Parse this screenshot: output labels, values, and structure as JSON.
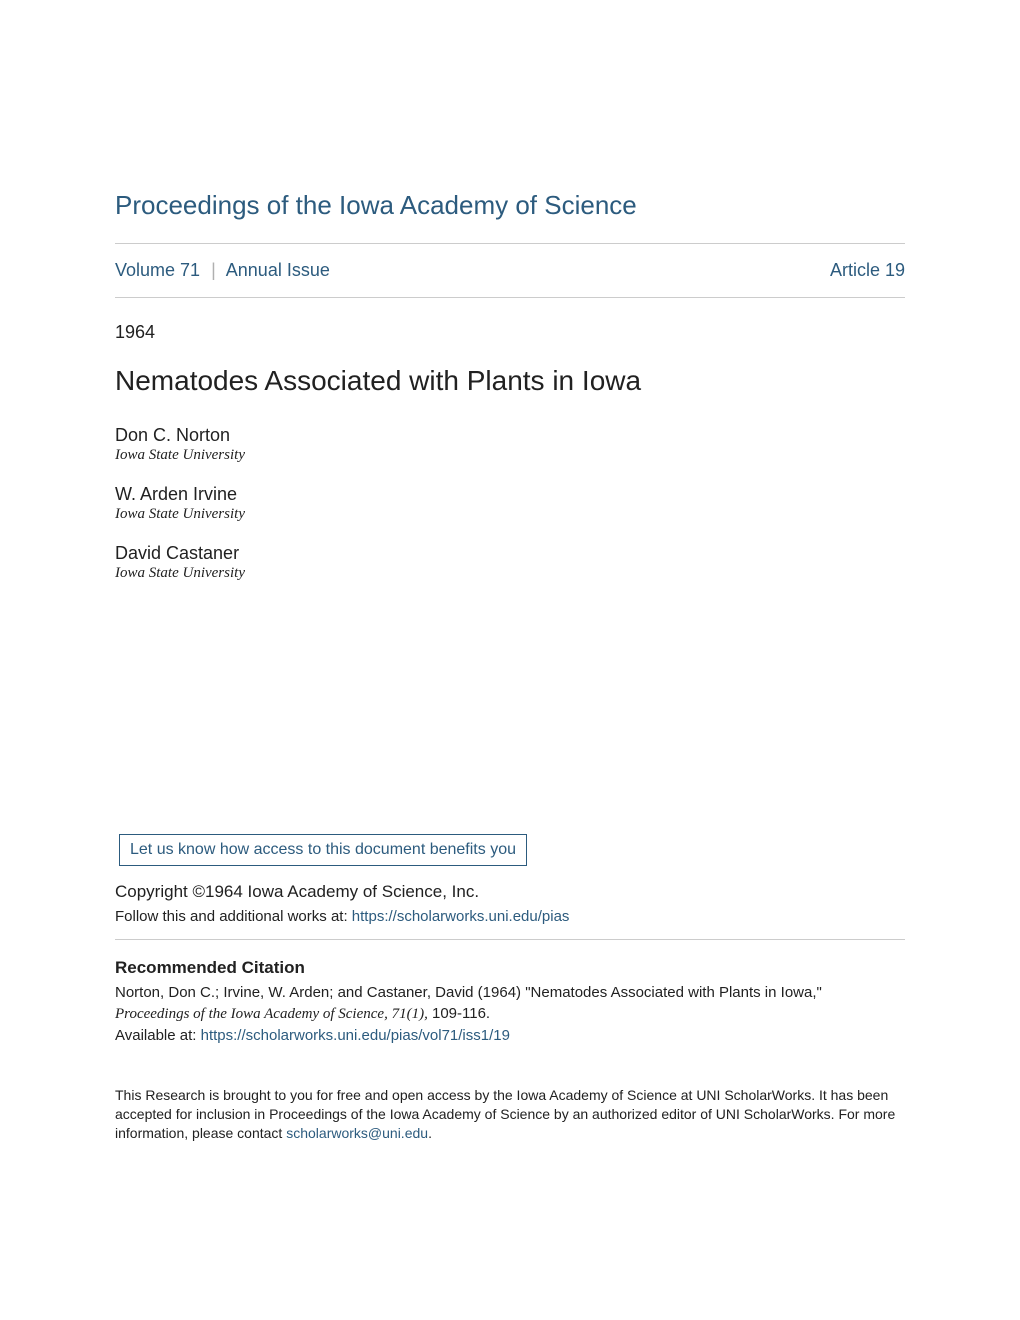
{
  "journal_title": "Proceedings of the Iowa Academy of Science",
  "issue": {
    "volume_label": "Volume 71",
    "issue_label": "Annual Issue",
    "article_label": "Article 19"
  },
  "year": "1964",
  "article_title": "Nematodes Associated with Plants in Iowa",
  "authors": [
    {
      "name": "Don C. Norton",
      "affiliation": "Iowa State University"
    },
    {
      "name": "W. Arden Irvine",
      "affiliation": "Iowa State University"
    },
    {
      "name": "David Castaner",
      "affiliation": "Iowa State University"
    }
  ],
  "benefits_link_text": "Let us know how access to this document benefits you",
  "copyright_text": "Copyright ©1964 Iowa Academy of Science, Inc.",
  "follow_text_prefix": "Follow this and additional works at: ",
  "follow_link": "https://scholarworks.uni.edu/pias",
  "citation": {
    "heading": "Recommended Citation",
    "line1": "Norton, Don C.; Irvine, W. Arden; and Castaner, David (1964) \"Nematodes Associated with Plants in Iowa,\"",
    "journal_italic": "Proceedings of the Iowa Academy of Science, 71(1),",
    "pages": " 109-116.",
    "available_prefix": "Available at: ",
    "available_link": "https://scholarworks.uni.edu/pias/vol71/iss1/19"
  },
  "footer": {
    "text_before": "This Research is brought to you for free and open access by the Iowa Academy of Science at UNI ScholarWorks. It has been accepted for inclusion in Proceedings of the Iowa Academy of Science by an authorized editor of UNI ScholarWorks. For more information, please contact ",
    "contact_link": "scholarworks@uni.edu",
    "text_after": "."
  },
  "colors": {
    "link": "#2c5b7e",
    "text": "#212121",
    "rule": "#cccccc",
    "background": "#ffffff"
  },
  "typography": {
    "journal_title_fontsize": 26,
    "article_title_fontsize": 28,
    "body_fontsize": 15,
    "issue_fontsize": 18
  }
}
